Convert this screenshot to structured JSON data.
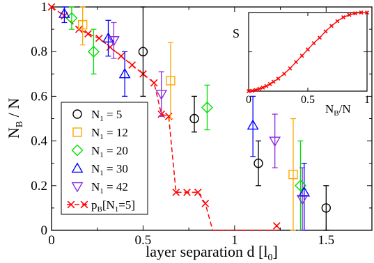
{
  "colors": {
    "n5": "#000000",
    "n12": "#ffa500",
    "n20": "#00dd00",
    "n30": "#0000ff",
    "n42": "#8a2be2",
    "pb": "#ff0000"
  },
  "chart_data": [
    {
      "type": "scatter",
      "xlabel": "layer separation d [l",
      "xlabel_sub": "0",
      "xlabel_end": "]",
      "ylabel": "N",
      "ylabel_sub": "B",
      "ylabel_end": " / N",
      "xlim": [
        0,
        1.75
      ],
      "ylim": [
        0,
        1
      ],
      "x_ticks": [
        0,
        0.5,
        1,
        1.5
      ],
      "x_tick_labels": [
        "0",
        "0.5",
        "1",
        "1.5"
      ],
      "y_ticks": [
        0,
        0.2,
        0.4,
        0.6,
        0.8,
        1
      ],
      "y_tick_labels": [
        "0",
        "0.2",
        "0.4",
        "0.6",
        "0.8",
        "1"
      ],
      "legend_position": "lower-left",
      "series": [
        {
          "name": "N",
          "name_sub": "1",
          "name_rest": " = 5",
          "marker": "circle",
          "color_key": "n5",
          "points": [
            {
              "x": 0.5,
              "y": 0.8,
              "lo": 0.6,
              "hi": 1.0
            },
            {
              "x": 0.78,
              "y": 0.5,
              "lo": 0.44,
              "hi": 0.6
            },
            {
              "x": 1.13,
              "y": 0.3,
              "lo": 0.2,
              "hi": 0.4
            },
            {
              "x": 1.5,
              "y": 0.1,
              "lo": 0.0,
              "hi": 0.2
            }
          ]
        },
        {
          "name": "N",
          "name_sub": "1",
          "name_rest": " = 12",
          "marker": "square",
          "color_key": "n12",
          "points": [
            {
              "x": 0.17,
              "y": 0.92,
              "lo": 0.83,
              "hi": 1.0
            },
            {
              "x": 0.65,
              "y": 0.67,
              "lo": 0.5,
              "hi": 0.84
            },
            {
              "x": 1.32,
              "y": 0.25,
              "lo": 0.0,
              "hi": 0.5
            }
          ]
        },
        {
          "name": "N",
          "name_sub": "1",
          "name_rest": " = 20",
          "marker": "diamond",
          "color_key": "n20",
          "points": [
            {
              "x": 0.11,
              "y": 0.95,
              "lo": 0.9,
              "hi": 1.0
            },
            {
              "x": 0.23,
              "y": 0.8,
              "lo": 0.7,
              "hi": 0.9
            },
            {
              "x": 0.85,
              "y": 0.55,
              "lo": 0.45,
              "hi": 0.65
            },
            {
              "x": 1.36,
              "y": 0.2,
              "lo": 0.0,
              "hi": 0.4
            }
          ]
        },
        {
          "name": "N",
          "name_sub": "1",
          "name_rest": " = 30",
          "marker": "triangle-up",
          "color_key": "n30",
          "points": [
            {
              "x": 0.07,
              "y": 0.97,
              "lo": 0.93,
              "hi": 1.0
            },
            {
              "x": 0.31,
              "y": 0.86,
              "lo": 0.78,
              "hi": 0.94
            },
            {
              "x": 0.4,
              "y": 0.7,
              "lo": 0.6,
              "hi": 0.8
            },
            {
              "x": 1.1,
              "y": 0.47,
              "lo": 0.33,
              "hi": 0.6
            },
            {
              "x": 1.38,
              "y": 0.17,
              "lo": 0.0,
              "hi": 0.3
            }
          ]
        },
        {
          "name": "N",
          "name_sub": "1",
          "name_rest": " = 42",
          "marker": "triangle-down",
          "color_key": "n42",
          "points": [
            {
              "x": 0.34,
              "y": 0.85,
              "lo": 0.77,
              "hi": 0.93
            },
            {
              "x": 0.6,
              "y": 0.61,
              "lo": 0.51,
              "hi": 0.71
            },
            {
              "x": 1.22,
              "y": 0.4,
              "lo": 0.28,
              "hi": 0.52
            },
            {
              "x": 1.37,
              "y": 0.14,
              "lo": 0.0,
              "hi": 0.28
            }
          ]
        },
        {
          "name": "p",
          "name_sub": "B",
          "name_rest": "[N",
          "name_sub2": "1",
          "name_end": "=5]",
          "marker": "x-dashed-line",
          "color_key": "pb",
          "line_x": [
            0,
            0.07,
            0.15,
            0.2,
            0.26,
            0.32,
            0.38,
            0.44,
            0.5,
            0.56,
            0.6,
            0.64,
            0.68,
            0.74,
            0.8,
            0.84,
            0.88,
            1.23
          ],
          "line_y": [
            1.0,
            0.96,
            0.9,
            0.88,
            0.86,
            0.82,
            0.78,
            0.74,
            0.7,
            0.66,
            0.52,
            0.51,
            0.17,
            0.17,
            0.17,
            0.12,
            0.0,
            0.0
          ],
          "x": [
            0,
            0.07,
            0.15,
            0.2,
            0.26,
            0.32,
            0.38,
            0.44,
            0.5,
            0.56,
            0.6,
            0.64,
            0.68,
            0.74,
            0.8,
            0.84,
            1.23
          ],
          "y": [
            1.0,
            0.96,
            0.9,
            0.88,
            0.86,
            0.82,
            0.78,
            0.74,
            0.7,
            0.66,
            0.52,
            0.51,
            0.17,
            0.17,
            0.17,
            0.12,
            0.02
          ]
        }
      ]
    },
    {
      "type": "line",
      "inset": true,
      "ylabel": "S",
      "xlabel": "N",
      "xlabel_sub": "B",
      "xlabel_end": "/N",
      "xlim": [
        0,
        1
      ],
      "ylim": [
        0,
        1
      ],
      "x_ticks": [
        0,
        0.5,
        1
      ],
      "x_tick_labels": [
        "0",
        "0.5",
        "1"
      ],
      "y_ticks": [
        0,
        0.5,
        1
      ],
      "series": [
        {
          "color_key": "pb",
          "x": [
            0,
            0.03,
            0.06,
            0.09,
            0.12,
            0.15,
            0.18,
            0.21,
            0.25,
            0.3,
            0.35,
            0.4,
            0.45,
            0.5,
            0.55,
            0.6,
            0.65,
            0.7,
            0.75,
            0.8,
            0.85,
            0.9,
            0.95,
            1.0
          ],
          "y": [
            0,
            0.005,
            0.015,
            0.03,
            0.045,
            0.065,
            0.09,
            0.12,
            0.16,
            0.22,
            0.29,
            0.37,
            0.45,
            0.53,
            0.61,
            0.68,
            0.76,
            0.83,
            0.89,
            0.94,
            0.97,
            0.99,
            1.0,
            1.0
          ]
        }
      ]
    }
  ]
}
